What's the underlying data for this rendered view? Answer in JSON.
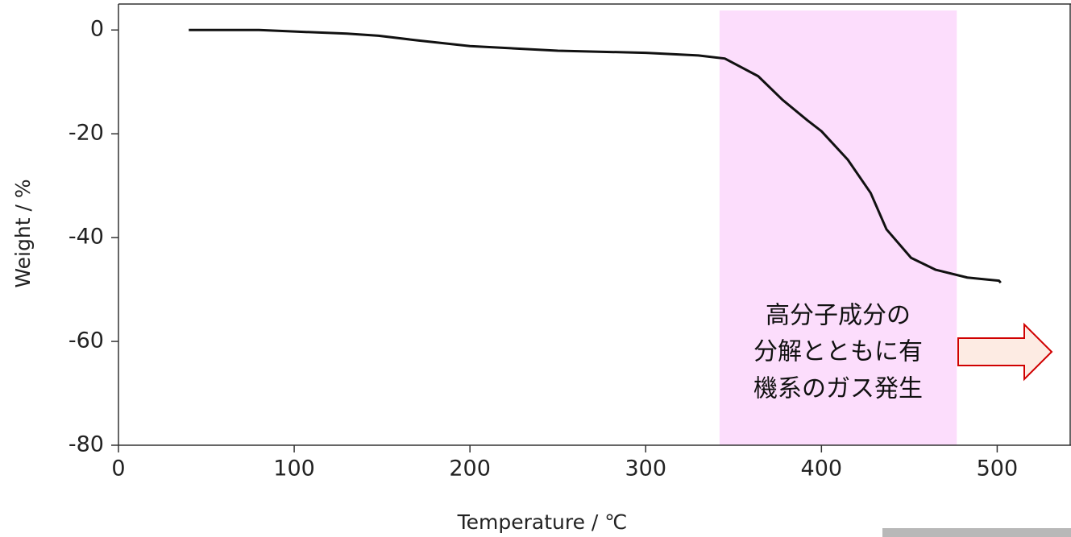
{
  "chart_data": {
    "type": "line",
    "x_label": "Temperature / ℃",
    "y_label": "Weight / %",
    "x": [
      40,
      80,
      100,
      130,
      148,
      170,
      200,
      250,
      300,
      330,
      345,
      364,
      378,
      392,
      400,
      415,
      428,
      437,
      451,
      465,
      483,
      495,
      501,
      502
    ],
    "series": [
      {
        "color": "#111111",
        "values": [
          0,
          0,
          -0.3,
          -0.7,
          -1.1,
          -2.0,
          -3.1,
          -4.0,
          -4.4,
          -4.9,
          -5.5,
          -8.9,
          -13.5,
          -17.4,
          -19.5,
          -25,
          -31.4,
          -38.4,
          -43.9,
          -46.2,
          -47.7,
          -48.1,
          -48.3,
          -48.7
        ]
      }
    ],
    "xlim": [
      0,
      542
    ],
    "xticks": [
      0,
      100,
      200,
      300,
      400,
      500
    ],
    "ylim": [
      -80,
      5
    ],
    "yticks": [
      0,
      -20,
      -40,
      -60,
      -80
    ],
    "highlight": {
      "xlim": [
        342,
        477
      ],
      "color": "#fcddfc"
    },
    "annotation": [
      "高分子成分の",
      "分解とともに有",
      "機系のガス発生"
    ]
  }
}
